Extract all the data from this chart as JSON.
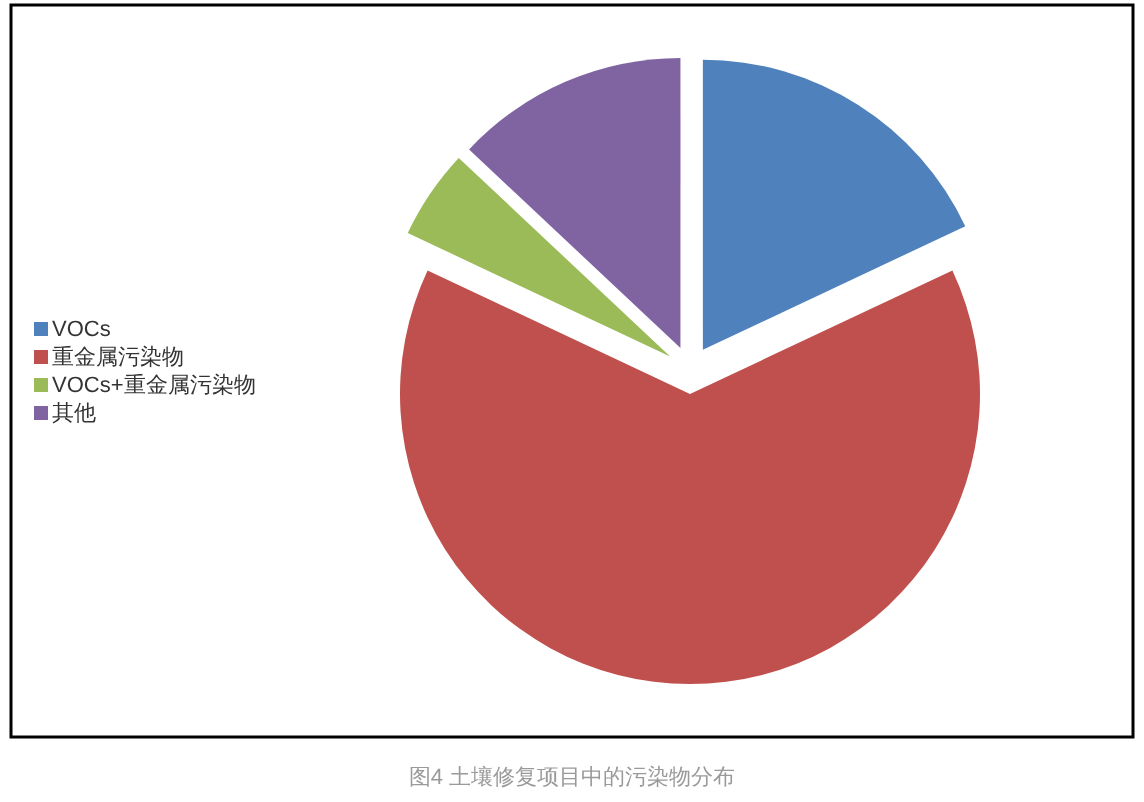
{
  "chart_data": {
    "type": "pie",
    "categories": [
      "VOCs",
      "重金属污染物",
      "VOCs+重金属污染物",
      "其他"
    ],
    "values": [
      18,
      64,
      5,
      13
    ],
    "colors": [
      "#4f81bd",
      "#c0504d",
      "#9bbb59",
      "#8064a2"
    ],
    "legend": "left",
    "annotations": [
      "图4 土壤修复项目中的污染物分布"
    ]
  }
}
